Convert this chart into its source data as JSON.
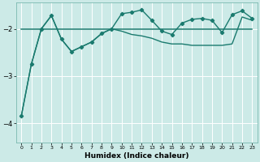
{
  "xlabel": "Humidex (Indice chaleur)",
  "ylabel": "",
  "background_color": "#cceae7",
  "grid_color": "#ffffff",
  "line_color": "#1a7a6e",
  "xlim": [
    -0.5,
    23.5
  ],
  "ylim": [
    -4.4,
    -1.45
  ],
  "yticks": [
    -4,
    -3,
    -2
  ],
  "xticks": [
    0,
    1,
    2,
    3,
    4,
    5,
    6,
    7,
    8,
    9,
    10,
    11,
    12,
    13,
    14,
    15,
    16,
    17,
    18,
    19,
    20,
    21,
    22,
    23
  ],
  "x": [
    0,
    1,
    2,
    3,
    4,
    5,
    6,
    7,
    8,
    9,
    10,
    11,
    12,
    13,
    14,
    15,
    16,
    17,
    18,
    19,
    20,
    21,
    22,
    23
  ],
  "line_flat": [
    -2.0,
    -2.0,
    -2.0,
    -2.0,
    -2.0,
    -2.0,
    -2.0,
    -2.0,
    -2.0,
    -2.0,
    -2.0,
    -2.0,
    -2.0,
    -2.0,
    -2.0,
    -2.0,
    -2.0,
    -2.0,
    -2.0,
    -2.0,
    -2.0,
    -2.0,
    -2.0,
    -2.0
  ],
  "line_zigzag": [
    -3.85,
    -2.75,
    -2.0,
    -1.72,
    -2.22,
    -2.48,
    -2.38,
    -2.28,
    -2.1,
    -2.0,
    -1.68,
    -1.65,
    -1.6,
    -1.82,
    -2.05,
    -2.12,
    -1.88,
    -1.8,
    -1.78,
    -1.82,
    -2.08,
    -1.7,
    -1.62,
    -1.78
  ],
  "line_lower": [
    -3.85,
    -2.75,
    -2.0,
    -1.72,
    -2.22,
    -2.48,
    -2.38,
    -2.28,
    -2.1,
    -2.0,
    -2.05,
    -2.12,
    -2.15,
    -2.2,
    -2.28,
    -2.32,
    -2.32,
    -2.35,
    -2.35,
    -2.35,
    -2.35,
    -2.32,
    -1.75,
    -1.82
  ]
}
